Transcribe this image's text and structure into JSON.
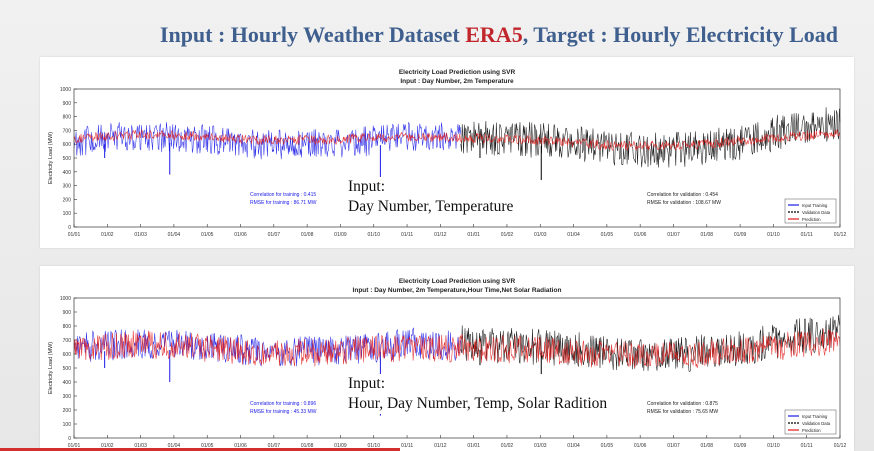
{
  "slide": {
    "title_part1": "Input : Hourly Weather Dataset ",
    "title_highlight": "ERA5",
    "title_part2": ", Target : Hourly Electricity Load",
    "highlight_color": "#c0262c",
    "title_color": "#3f5f8e"
  },
  "colors": {
    "input_training": "#1a1ae6",
    "validation_data": "#000000",
    "prediction": "#e01818"
  },
  "chart_data": [
    {
      "type": "line",
      "title": "Electricity Load Prediction using SVR",
      "subtitle": "Input : Day Number, 2m Temperature",
      "ylabel": "Electricity Load (MW)",
      "xlabel": "",
      "ylim": [
        0,
        1000
      ],
      "yticks": [
        0,
        100,
        200,
        300,
        400,
        500,
        600,
        700,
        800,
        900,
        1000
      ],
      "xticks": [
        "01/01",
        "01/02",
        "01/03",
        "01/04",
        "01/05",
        "01/06",
        "01/07",
        "01/08",
        "01/09",
        "01/10",
        "01/11",
        "01/12",
        "01/01",
        "01/02",
        "01/03",
        "01/04",
        "01/05",
        "01/06",
        "01/07",
        "01/08",
        "01/09",
        "01/10",
        "01/11",
        "01/12"
      ],
      "split_fraction": 0.505,
      "grid": false,
      "legend_position": "bottom-right",
      "legend": [
        "Input Training",
        "Validation Data",
        "Prediction"
      ],
      "annotation_training": [
        "Correlation for training : 0.415",
        "RMSE for training : 86.71 MW"
      ],
      "annotation_validation": [
        "Correlation for validation : 0.454",
        "RMSE for validation : 108.67 MW"
      ],
      "caption": [
        "Input:",
        "Day Number, Temperature"
      ],
      "series": [
        {
          "name": "Input Training",
          "segment": "training",
          "knots": [
            [
              0,
              620
            ],
            [
              0.08,
              660
            ],
            [
              0.16,
              640
            ],
            [
              0.24,
              600
            ],
            [
              0.32,
              600
            ],
            [
              0.38,
              620
            ],
            [
              0.44,
              660
            ],
            [
              0.5,
              650
            ]
          ],
          "band": 220,
          "dips": [
            [
              0.04,
              500
            ],
            [
              0.125,
              380
            ],
            [
              0.4,
              160
            ]
          ]
        },
        {
          "name": "Validation Data",
          "segment": "validation",
          "knots": [
            [
              0.5,
              660
            ],
            [
              0.56,
              640
            ],
            [
              0.64,
              620
            ],
            [
              0.72,
              560
            ],
            [
              0.8,
              560
            ],
            [
              0.88,
              620
            ],
            [
              0.94,
              720
            ],
            [
              1.0,
              760
            ]
          ],
          "band": 260,
          "dips": [
            [
              0.53,
              500
            ],
            [
              0.61,
              340
            ]
          ]
        },
        {
          "name": "Prediction",
          "segment": "all",
          "knots": [
            [
              0,
              640
            ],
            [
              0.08,
              670
            ],
            [
              0.16,
              660
            ],
            [
              0.24,
              630
            ],
            [
              0.32,
              630
            ],
            [
              0.4,
              650
            ],
            [
              0.5,
              650
            ],
            [
              0.6,
              630
            ],
            [
              0.7,
              590
            ],
            [
              0.8,
              590
            ],
            [
              0.9,
              640
            ],
            [
              1.0,
              680
            ]
          ],
          "band": 70,
          "dips": []
        }
      ]
    },
    {
      "type": "line",
      "title": "Electricity Load Prediction using SVR",
      "subtitle": "Input : Day Number, 2m Temperature,Hour Time,Net Solar Radiation",
      "ylabel": "Electricity Load (MW)",
      "xlabel": "",
      "ylim": [
        0,
        1000
      ],
      "yticks": [
        0,
        100,
        200,
        300,
        400,
        500,
        600,
        700,
        800,
        900,
        1000
      ],
      "xticks": [
        "01/01",
        "01/02",
        "01/03",
        "01/04",
        "01/05",
        "01/06",
        "01/07",
        "01/08",
        "01/09",
        "01/10",
        "01/11",
        "01/12",
        "01/01",
        "01/02",
        "01/03",
        "01/04",
        "01/05",
        "01/06",
        "01/07",
        "01/08",
        "01/09",
        "01/10",
        "01/11",
        "01/12"
      ],
      "split_fraction": 0.505,
      "grid": false,
      "legend_position": "bottom-right",
      "legend": [
        "Input Training",
        "Validation Data",
        "Prediction"
      ],
      "annotation_training": [
        "Correlation for training : 0.896",
        "RMSE for training : 45.33 MW"
      ],
      "annotation_validation": [
        "Correlation for validation : 0.875",
        "RMSE for validation : 75.65 MW"
      ],
      "caption": [
        "Input:",
        "Hour, Day Number, Temp, Solar Radition"
      ],
      "series": [
        {
          "name": "Input Training",
          "segment": "training",
          "knots": [
            [
              0,
              640
            ],
            [
              0.08,
              680
            ],
            [
              0.16,
              660
            ],
            [
              0.24,
              620
            ],
            [
              0.32,
              620
            ],
            [
              0.38,
              640
            ],
            [
              0.44,
              680
            ],
            [
              0.5,
              660
            ]
          ],
          "band": 220,
          "dips": [
            [
              0.04,
              500
            ],
            [
              0.125,
              400
            ],
            [
              0.4,
              160
            ]
          ]
        },
        {
          "name": "Validation Data",
          "segment": "validation",
          "knots": [
            [
              0.5,
              680
            ],
            [
              0.56,
              660
            ],
            [
              0.64,
              640
            ],
            [
              0.72,
              600
            ],
            [
              0.8,
              600
            ],
            [
              0.88,
              650
            ],
            [
              0.94,
              720
            ],
            [
              1.0,
              760
            ]
          ],
          "band": 260,
          "dips": [
            [
              0.53,
              520
            ],
            [
              0.61,
              320
            ]
          ]
        },
        {
          "name": "Prediction",
          "segment": "all",
          "knots": [
            [
              0,
              630
            ],
            [
              0.08,
              670
            ],
            [
              0.16,
              650
            ],
            [
              0.24,
              610
            ],
            [
              0.32,
              610
            ],
            [
              0.4,
              640
            ],
            [
              0.5,
              640
            ],
            [
              0.6,
              630
            ],
            [
              0.7,
              590
            ],
            [
              0.8,
              590
            ],
            [
              0.9,
              640
            ],
            [
              1.0,
              700
            ]
          ],
          "band": 200,
          "dips": []
        }
      ]
    }
  ]
}
